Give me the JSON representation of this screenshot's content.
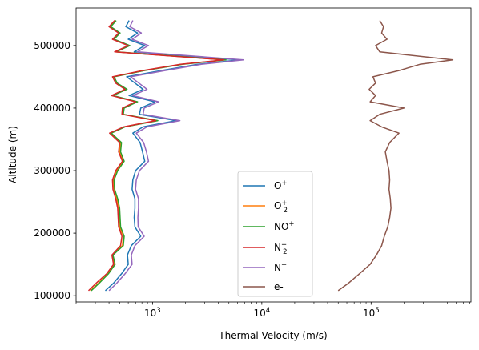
{
  "chart_data": {
    "type": "line",
    "xlabel": "Thermal Velocity (m/s)",
    "ylabel": "Altitude (m)",
    "xscale": "log",
    "xlim": [
      200,
      820000
    ],
    "ylim": [
      90000,
      560000
    ],
    "x_major_ticks": [
      {
        "value": 1000,
        "base": "10",
        "exp": "3"
      },
      {
        "value": 10000,
        "base": "10",
        "exp": "4"
      },
      {
        "value": 100000,
        "base": "10",
        "exp": "5"
      }
    ],
    "y_ticks": [
      100000,
      200000,
      300000,
      400000,
      500000
    ],
    "y_tick_labels": [
      "100000",
      "200000",
      "300000",
      "400000",
      "500000"
    ],
    "legend_position": "lower center",
    "grid": false,
    "altitudes": [
      108000,
      120000,
      135000,
      150000,
      165000,
      180000,
      195000,
      210000,
      225000,
      240000,
      255000,
      270000,
      285000,
      300000,
      315000,
      330000,
      345000,
      360000,
      370000,
      380000,
      390000,
      400000,
      410000,
      420000,
      430000,
      440000,
      450000,
      460000,
      470000,
      477000,
      490000,
      500000,
      510000,
      520000,
      530000,
      540000
    ],
    "series": [
      {
        "name": "O⁺",
        "label_base": "O",
        "label_sup": "+",
        "label_sub": "",
        "color": "#1f77b4",
        "values": [
          370,
          440,
          520,
          600,
          590,
          640,
          780,
          690,
          680,
          690,
          690,
          650,
          660,
          700,
          850,
          810,
          770,
          660,
          820,
          1650,
          760,
          780,
          1050,
          610,
          820,
          690,
          580,
          1200,
          2600,
          6200,
          680,
          850,
          600,
          730,
          570,
          610
        ]
      },
      {
        "name": "O₂⁺",
        "label_base": "O",
        "label_sup": "+",
        "label_sub": "2",
        "color": "#ff7f0e",
        "values": [
          270,
          320,
          390,
          450,
          430,
          530,
          540,
          500,
          495,
          490,
          470,
          445,
          440,
          470,
          540,
          500,
          510,
          415,
          555,
          1100,
          535,
          540,
          720,
          430,
          575,
          470,
          440,
          830,
          1850,
          4600,
          460,
          610,
          440,
          500,
          410,
          460
        ]
      },
      {
        "name": "NO⁺",
        "label_base": "NO",
        "label_sup": "+",
        "label_sub": "",
        "color": "#2ca02c",
        "values": [
          275,
          325,
          395,
          455,
          435,
          540,
          550,
          510,
          505,
          500,
          480,
          450,
          445,
          480,
          550,
          510,
          520,
          420,
          560,
          1120,
          540,
          550,
          730,
          435,
          585,
          475,
          445,
          840,
          1880,
          4700,
          465,
          620,
          445,
          505,
          415,
          465
        ]
      },
      {
        "name": "N₂⁺",
        "label_base": "N",
        "label_sup": "+",
        "label_sub": "2",
        "color": "#d62728",
        "values": [
          260,
          305,
          380,
          440,
          425,
          510,
          525,
          490,
          485,
          480,
          460,
          435,
          430,
          460,
          530,
          490,
          500,
          405,
          545,
          1070,
          525,
          530,
          700,
          420,
          560,
          460,
          430,
          810,
          1800,
          4500,
          450,
          600,
          430,
          490,
          400,
          450
        ]
      },
      {
        "name": "N⁺",
        "label_base": "N",
        "label_sup": "+",
        "label_sub": "",
        "color": "#9467bd",
        "values": [
          400,
          470,
          560,
          650,
          640,
          690,
          840,
          740,
          735,
          745,
          745,
          700,
          710,
          760,
          920,
          880,
          830,
          710,
          890,
          1780,
          820,
          840,
          1140,
          660,
          890,
          750,
          630,
          1300,
          2800,
          6800,
          730,
          920,
          650,
          790,
          620,
          660
        ]
      },
      {
        "name": "e-",
        "label_base": "e-",
        "label_sup": "",
        "label_sub": "",
        "color": "#8c564b",
        "values": [
          50000,
          62000,
          78000,
          98000,
          112000,
          125000,
          132000,
          142000,
          148000,
          152000,
          150000,
          146000,
          148000,
          146000,
          140000,
          135000,
          148000,
          180000,
          125000,
          98000,
          120000,
          200000,
          98000,
          110000,
          96000,
          110000,
          104000,
          180000,
          280000,
          560000,
          120000,
          110000,
          140000,
          125000,
          130000,
          120000
        ]
      }
    ]
  }
}
